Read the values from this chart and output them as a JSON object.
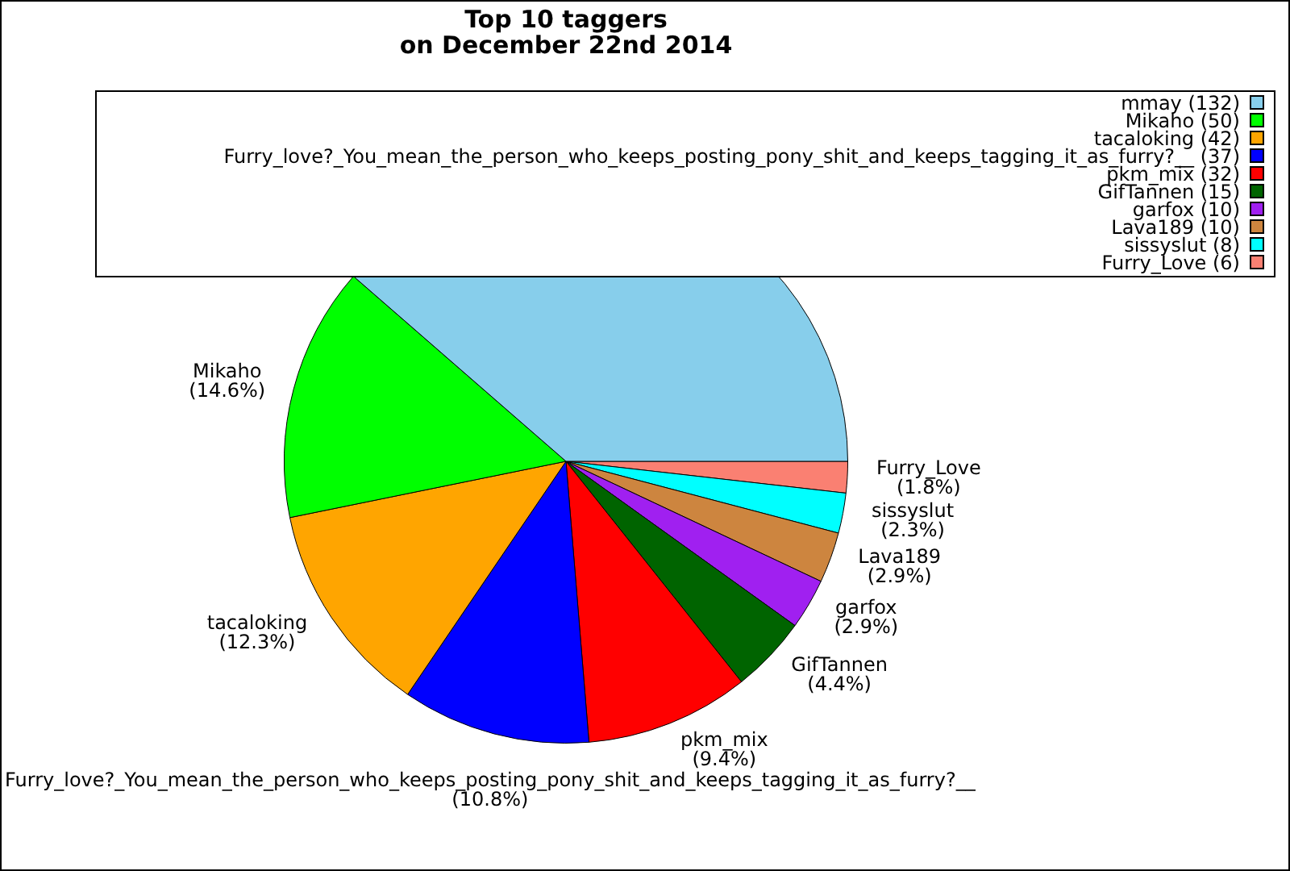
{
  "chart_data": {
    "type": "pie",
    "title": "Top 10 taggers\non December 22nd 2014",
    "categories": [
      "mmay (132)",
      "Mikaho (50)",
      "tacaloking (42)",
      "Furry_love?_You_mean_the_person_who_keeps_posting_pony_shit_and_keeps_tagging_it_as_furry?__ (37)",
      "pkm_mix (32)",
      "GifTannen (15)",
      "garfox (10)",
      "Lava189 (10)",
      "sissyslut (8)",
      "Furry_Love (6)"
    ],
    "values": [
      38.6,
      14.6,
      12.3,
      10.8,
      9.4,
      4.4,
      2.9,
      2.9,
      2.3,
      1.8
    ],
    "colors": [
      "#87ceeb",
      "#00ff00",
      "#ffa500",
      "#0000ff",
      "#ff0000",
      "#006400",
      "#a020f0",
      "#cd853f",
      "#00ffff",
      "#fa8072"
    ],
    "value_labels": [
      null,
      "Mikaho\n(14.6%)",
      "tacaloking\n(12.3%)",
      "Furry_love?_You_mean_the_person_who_keeps_posting_pony_shit_and_keeps_tagging_it_as_furry?__\n(10.8%)",
      "pkm_mix\n(9.4%)",
      "GifTannen\n(4.4%)",
      "garfox\n(2.9%)",
      "Lava189\n(2.9%)",
      "sissyslut\n(2.3%)",
      "Furry_Love\n(1.8%)"
    ],
    "legend": "top right"
  }
}
